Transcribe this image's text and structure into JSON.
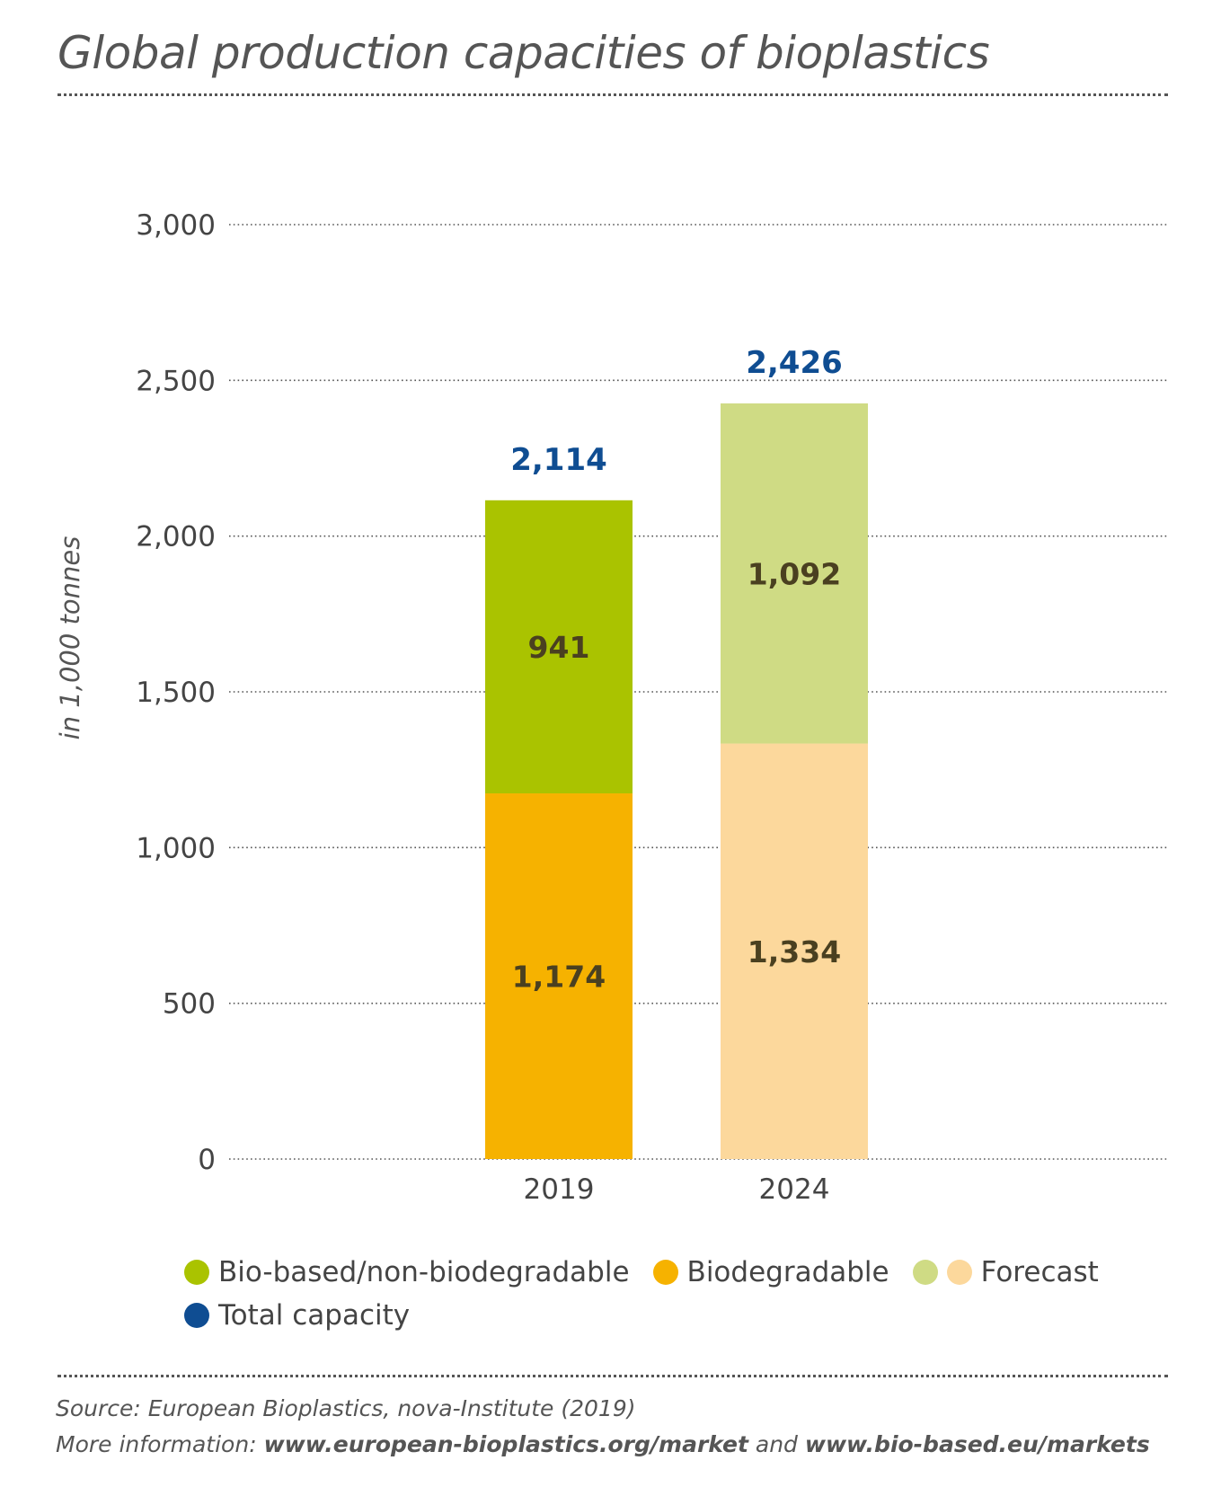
{
  "title": "Global production capacities of bioplastics",
  "chart_data": {
    "type": "bar",
    "stacked": true,
    "categories": [
      "2019",
      "2024"
    ],
    "ylabel": "in 1,000 tonnes",
    "ylim": [
      0,
      3000
    ],
    "yticks": [
      0,
      500,
      1000,
      1500,
      2000,
      2500,
      3000
    ],
    "ytick_labels": [
      "0",
      "500",
      "1,000",
      "1,500",
      "2,000",
      "2,500",
      "3,000"
    ],
    "grid": true,
    "series": [
      {
        "name": "Biodegradable",
        "values": [
          1174,
          1334
        ],
        "labels": [
          "1,174",
          "1,334"
        ],
        "colors": [
          "#f6b200",
          "#fcd89c"
        ]
      },
      {
        "name": "Bio-based/non-biodegradable",
        "values": [
          941,
          1092
        ],
        "labels": [
          "941",
          "1,092"
        ],
        "colors": [
          "#aac300",
          "#cfdb84"
        ]
      }
    ],
    "totals": {
      "name": "Total capacity",
      "values": [
        2114,
        2426
      ],
      "labels": [
        "2,114",
        "2,426"
      ],
      "color": "#0f4d92"
    }
  },
  "legend": {
    "items": [
      {
        "label": "Bio-based/non-biodegradable",
        "colors": [
          "#aac300"
        ]
      },
      {
        "label": "Biodegradable",
        "colors": [
          "#f6b200"
        ]
      },
      {
        "label": "Forecast",
        "colors": [
          "#cfdb84",
          "#fcd89c"
        ]
      },
      {
        "label": "Total capacity",
        "colors": [
          "#0f4d92"
        ]
      }
    ]
  },
  "source": {
    "line1": "Source: European Bioplastics, nova-Institute (2019)",
    "line2_prefix": "More information: ",
    "link1": "www.european-bioplastics.org/market",
    "line2_mid": " and ",
    "link2": "www.bio-based.eu/markets"
  }
}
